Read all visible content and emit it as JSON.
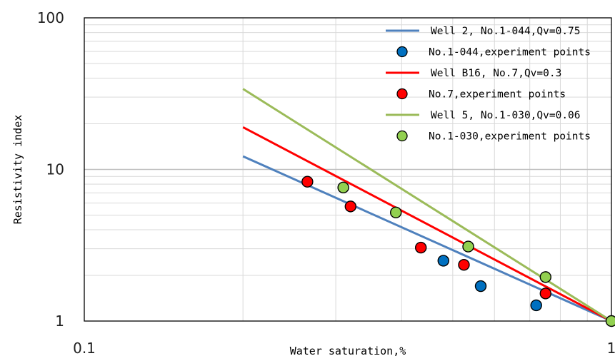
{
  "chart_data": {
    "type": "scatter",
    "xlabel": "Water saturation,%",
    "ylabel": "Resistivity index",
    "x_scale": "log",
    "y_scale": "log",
    "xlim": [
      0.1,
      1
    ],
    "ylim": [
      1,
      100
    ],
    "x_tick_labels": [
      "0.1",
      "1"
    ],
    "y_tick_labels": [
      "1",
      "10",
      "100"
    ],
    "grid": true,
    "legend_position": "top-right",
    "series": [
      {
        "name": "Well 2, No.1-044,Qv=0.75",
        "kind": "line",
        "color": "#4f81bd",
        "x": [
          0.2,
          1.0
        ],
        "y": [
          12.2,
          1.0
        ]
      },
      {
        "name": "No.1-044,experiment points",
        "kind": "points",
        "color": "#0070c0",
        "x": [
          0.48,
          0.565,
          0.72
        ],
        "y": [
          2.5,
          1.7,
          1.27
        ]
      },
      {
        "name": "Well B16, No.7,Qv=0.3",
        "kind": "line",
        "color": "#ff0000",
        "x": [
          0.2,
          1.0
        ],
        "y": [
          19.0,
          1.0
        ]
      },
      {
        "name": "No.7,experiment points",
        "kind": "points",
        "color": "#ff0000",
        "x": [
          0.265,
          0.32,
          0.435,
          0.525,
          0.75
        ],
        "y": [
          8.3,
          5.7,
          3.05,
          2.35,
          1.52
        ]
      },
      {
        "name": "Well 5, No.1-030,Qv=0.06",
        "kind": "line",
        "color": "#9bbb59",
        "x": [
          0.2,
          1.0
        ],
        "y": [
          34.0,
          1.0
        ]
      },
      {
        "name": "No.1-030,experiment points",
        "kind": "points",
        "color": "#92d050",
        "x": [
          0.31,
          0.39,
          0.535,
          0.75,
          1.0
        ],
        "y": [
          7.6,
          5.2,
          3.1,
          1.95,
          1.0
        ]
      }
    ]
  }
}
